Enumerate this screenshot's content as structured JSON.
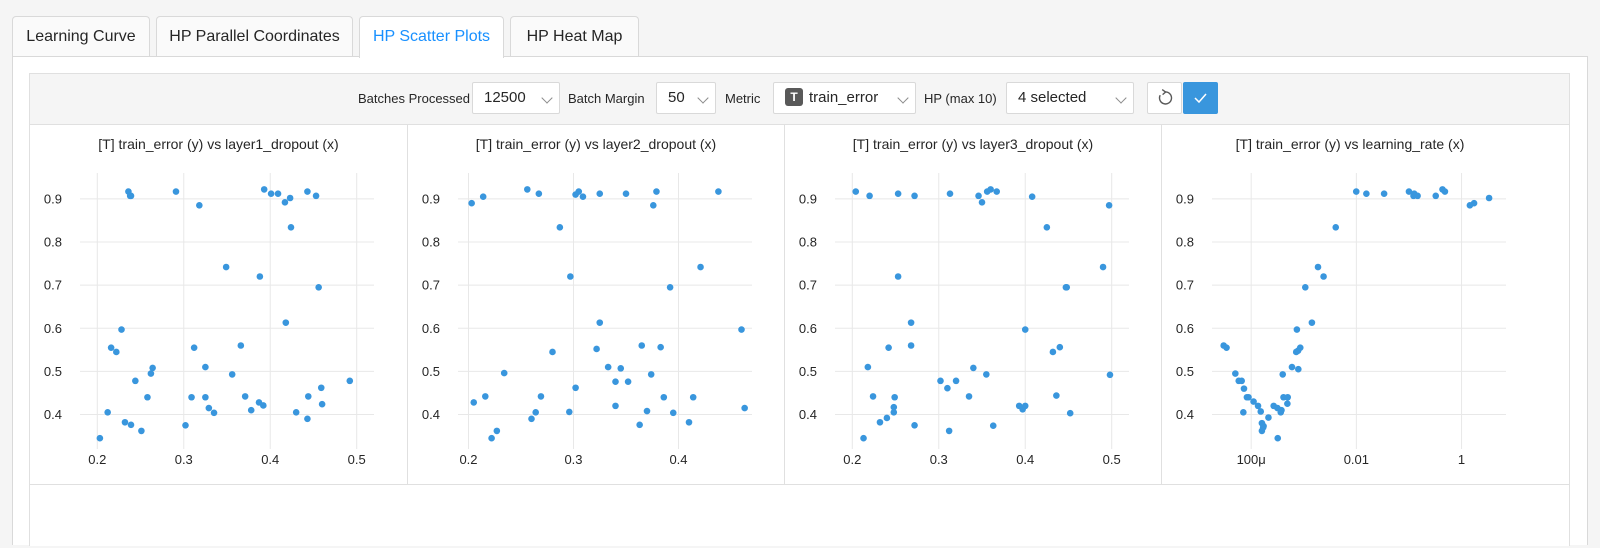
{
  "tabs": [
    {
      "label": "Learning Curve"
    },
    {
      "label": "HP Parallel Coordinates"
    },
    {
      "label": "HP Scatter Plots",
      "active": true
    },
    {
      "label": "HP Heat Map"
    }
  ],
  "toolbar": {
    "batches_label": "Batches Processed",
    "batches_value": "12500",
    "margin_label": "Batch Margin",
    "margin_value": "50",
    "metric_label": "Metric",
    "metric_badge": "T",
    "metric_value": "train_error",
    "hp_label": "HP (max 10)",
    "hp_value": "4 selected",
    "reset_icon": "refresh-icon",
    "apply_icon": "check-icon",
    "accent": "#3996dd"
  },
  "point_color": "#3996dd",
  "chart_data": [
    {
      "type": "scatter",
      "title": "[T] train_error (y) vs layer1_dropout (x)",
      "xlim": [
        0.18,
        0.52
      ],
      "ylim": [
        0.32,
        0.96
      ],
      "xticks": [
        0.2,
        0.3,
        0.4,
        0.5
      ],
      "xtick_labels": [
        "0.2",
        "0.3",
        "0.4",
        "0.5"
      ],
      "yticks": [
        0.4,
        0.5,
        0.6,
        0.7,
        0.8,
        0.9
      ],
      "ytick_labels": [
        "0.4",
        "0.5",
        "0.6",
        "0.7",
        "0.8",
        "0.9"
      ],
      "x": [
        0.236,
        0.238,
        0.239,
        0.291,
        0.318,
        0.349,
        0.388,
        0.393,
        0.401,
        0.409,
        0.417,
        0.423,
        0.443,
        0.453,
        0.424,
        0.456,
        0.418,
        0.216,
        0.222,
        0.228,
        0.244,
        0.258,
        0.262,
        0.264,
        0.312,
        0.325,
        0.356,
        0.366,
        0.203,
        0.212,
        0.232,
        0.239,
        0.251,
        0.302,
        0.309,
        0.325,
        0.329,
        0.335,
        0.371,
        0.378,
        0.387,
        0.392,
        0.43,
        0.443,
        0.444,
        0.459,
        0.46,
        0.492
      ],
      "y": [
        0.917,
        0.907,
        0.907,
        0.917,
        0.885,
        0.742,
        0.72,
        0.922,
        0.912,
        0.912,
        0.892,
        0.902,
        0.917,
        0.907,
        0.834,
        0.695,
        0.613,
        0.555,
        0.545,
        0.597,
        0.478,
        0.44,
        0.495,
        0.508,
        0.555,
        0.51,
        0.493,
        0.56,
        0.345,
        0.405,
        0.382,
        0.376,
        0.362,
        0.375,
        0.44,
        0.44,
        0.415,
        0.404,
        0.442,
        0.41,
        0.428,
        0.421,
        0.405,
        0.39,
        0.442,
        0.462,
        0.424,
        0.478
      ]
    },
    {
      "type": "scatter",
      "title": "[T] train_error (y) vs layer2_dropout (x)",
      "xlim": [
        0.19,
        0.47
      ],
      "ylim": [
        0.32,
        0.96
      ],
      "xticks": [
        0.2,
        0.3,
        0.4
      ],
      "xtick_labels": [
        "0.2",
        "0.3",
        "0.4"
      ],
      "yticks": [
        0.4,
        0.5,
        0.6,
        0.7,
        0.8,
        0.9
      ],
      "ytick_labels": [
        "0.4",
        "0.5",
        "0.6",
        "0.7",
        "0.8",
        "0.9"
      ],
      "x": [
        0.203,
        0.214,
        0.256,
        0.267,
        0.302,
        0.305,
        0.309,
        0.325,
        0.35,
        0.376,
        0.379,
        0.438,
        0.287,
        0.297,
        0.325,
        0.392,
        0.421,
        0.46,
        0.222,
        0.227,
        0.205,
        0.216,
        0.234,
        0.26,
        0.264,
        0.269,
        0.28,
        0.296,
        0.302,
        0.322,
        0.333,
        0.34,
        0.34,
        0.345,
        0.352,
        0.363,
        0.365,
        0.37,
        0.374,
        0.383,
        0.386,
        0.395,
        0.41,
        0.414,
        0.463
      ],
      "y": [
        0.89,
        0.905,
        0.922,
        0.912,
        0.91,
        0.917,
        0.905,
        0.912,
        0.912,
        0.885,
        0.917,
        0.917,
        0.834,
        0.72,
        0.613,
        0.695,
        0.742,
        0.597,
        0.345,
        0.362,
        0.428,
        0.442,
        0.496,
        0.39,
        0.405,
        0.442,
        0.545,
        0.406,
        0.462,
        0.552,
        0.51,
        0.476,
        0.42,
        0.507,
        0.476,
        0.376,
        0.56,
        0.408,
        0.493,
        0.556,
        0.44,
        0.404,
        0.382,
        0.44,
        0.415
      ]
    },
    {
      "type": "scatter",
      "title": "[T] train_error (y) vs layer3_dropout (x)",
      "xlim": [
        0.18,
        0.52
      ],
      "ylim": [
        0.32,
        0.96
      ],
      "xticks": [
        0.2,
        0.3,
        0.4,
        0.5
      ],
      "xtick_labels": [
        "0.2",
        "0.3",
        "0.4",
        "0.5"
      ],
      "yticks": [
        0.4,
        0.5,
        0.6,
        0.7,
        0.8,
        0.9
      ],
      "ytick_labels": [
        "0.4",
        "0.5",
        "0.6",
        "0.7",
        "0.8",
        "0.9"
      ],
      "x": [
        0.204,
        0.22,
        0.253,
        0.272,
        0.313,
        0.346,
        0.35,
        0.356,
        0.36,
        0.367,
        0.408,
        0.425,
        0.497,
        0.253,
        0.268,
        0.4,
        0.448,
        0.49,
        0.268,
        0.213,
        0.218,
        0.224,
        0.232,
        0.24,
        0.242,
        0.248,
        0.248,
        0.249,
        0.272,
        0.302,
        0.31,
        0.32,
        0.312,
        0.335,
        0.34,
        0.355,
        0.363,
        0.393,
        0.397,
        0.4,
        0.432,
        0.436,
        0.44,
        0.452,
        0.447,
        0.498
      ],
      "y": [
        0.917,
        0.907,
        0.912,
        0.907,
        0.912,
        0.907,
        0.892,
        0.917,
        0.922,
        0.917,
        0.905,
        0.834,
        0.885,
        0.72,
        0.613,
        0.597,
        0.695,
        0.742,
        0.56,
        0.345,
        0.51,
        0.442,
        0.382,
        0.392,
        0.555,
        0.405,
        0.417,
        0.44,
        0.375,
        0.478,
        0.461,
        0.478,
        0.362,
        0.442,
        0.508,
        0.493,
        0.374,
        0.42,
        0.412,
        0.42,
        0.545,
        0.444,
        0.556,
        0.403,
        0.695,
        0.492
      ]
    },
    {
      "type": "scatter",
      "title": "[T] train_error (y) vs learning_rate (x)",
      "x_scale": "log",
      "xlim": [
        1.8e-05,
        7
      ],
      "ylim": [
        0.32,
        0.96
      ],
      "xticks": [
        0.0001,
        0.01,
        1
      ],
      "xtick_labels": [
        "100μ",
        "0.01",
        "1"
      ],
      "yticks": [
        0.4,
        0.5,
        0.6,
        0.7,
        0.8,
        0.9
      ],
      "ytick_labels": [
        "0.4",
        "0.5",
        "0.6",
        "0.7",
        "0.8",
        "0.9"
      ],
      "x": [
        3e-05,
        3.4e-05,
        5e-05,
        5.8e-05,
        6.6e-05,
        7.3e-05,
        8.3e-05,
        7.1e-05,
        8.9e-05,
        0.000111,
        0.000135,
        0.000152,
        0.00016,
        0.00016,
        0.000169,
        0.000172,
        0.000213,
        0.000268,
        0.000316,
        0.00032,
        0.000377,
        0.000412,
        0.000488,
        0.000495,
        0.000597,
        0.000718,
        0.00074,
        0.000788,
        0.00078,
        0.000858,
        0.001069,
        0.001428,
        0.001865,
        0.002382,
        0.004054,
        0.00995,
        0.0155,
        0.0337,
        0.1,
        0.122,
        0.126,
        0.146,
        0.323,
        0.434,
        0.483,
        1.44,
        1.73,
        3.34,
        0.000365,
        0.000398
      ],
      "y": [
        0.56,
        0.555,
        0.495,
        0.478,
        0.478,
        0.46,
        0.44,
        0.405,
        0.44,
        0.43,
        0.42,
        0.407,
        0.38,
        0.362,
        0.37,
        0.373,
        0.393,
        0.42,
        0.415,
        0.345,
        0.41,
        0.44,
        0.425,
        0.44,
        0.51,
        0.545,
        0.597,
        0.505,
        0.548,
        0.555,
        0.695,
        0.613,
        0.742,
        0.72,
        0.834,
        0.917,
        0.912,
        0.912,
        0.917,
        0.907,
        0.912,
        0.907,
        0.907,
        0.922,
        0.917,
        0.885,
        0.89,
        0.902,
        0.405,
        0.493
      ]
    }
  ]
}
